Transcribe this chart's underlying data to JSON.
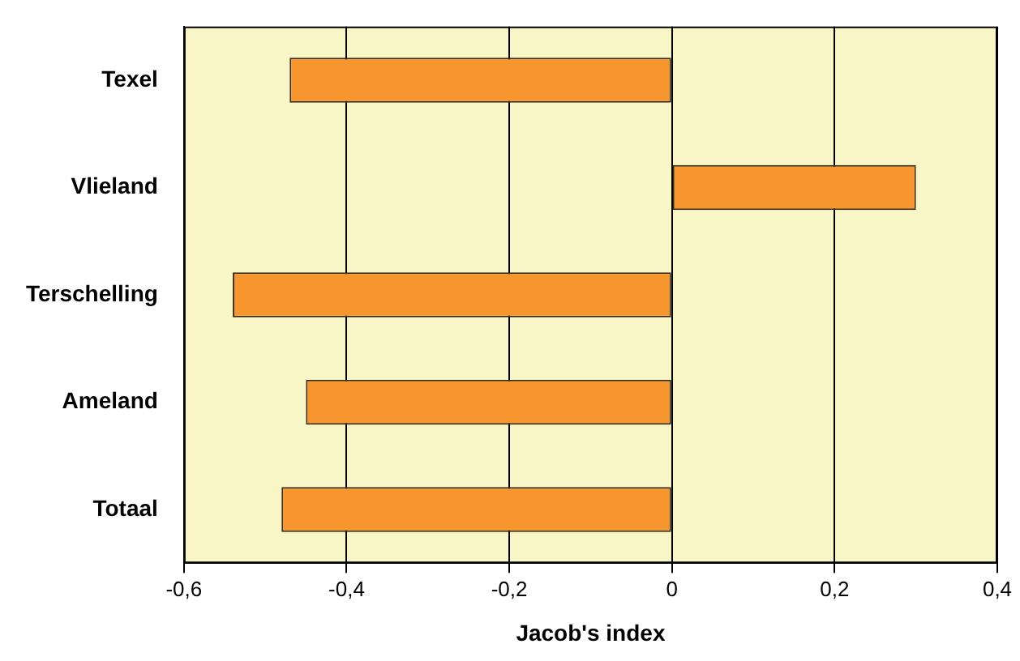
{
  "chart_data": {
    "type": "bar",
    "orientation": "horizontal",
    "xlabel": "Jacob's index",
    "categories": [
      "Texel",
      "Vlieland",
      "Terschelling",
      "Ameland",
      "Totaal"
    ],
    "values": [
      -0.47,
      0.3,
      -0.54,
      -0.45,
      -0.48
    ],
    "color": "#f7962f",
    "xlim": [
      -0.6,
      0.4
    ],
    "xticks": [
      {
        "value": -0.6,
        "label": "-0,6"
      },
      {
        "value": -0.4,
        "label": "-0,4"
      },
      {
        "value": -0.2,
        "label": "-0,2"
      },
      {
        "value": 0,
        "label": "0"
      },
      {
        "value": 0.2,
        "label": "0,2"
      },
      {
        "value": 0.4,
        "label": "0,4"
      }
    ],
    "grid": "x",
    "legend": false
  }
}
